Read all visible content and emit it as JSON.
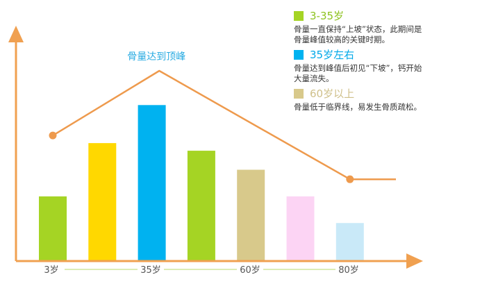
{
  "colors": {
    "axis": "#F0A050",
    "trend": "#EE9A4D",
    "peak_label": "#29ABE2",
    "tick_text": "#555555",
    "divider": "#B8D96A"
  },
  "chart_data": {
    "type": "bar",
    "xlabel": "",
    "ylabel": "",
    "ylim": [
      0,
      100
    ],
    "x_tick_labels": [
      "3岁",
      "35岁",
      "60岁",
      "80岁"
    ],
    "bars": [
      {
        "value": 34,
        "color": "#A5D424"
      },
      {
        "value": 62,
        "color": "#FFD800"
      },
      {
        "value": 82,
        "color": "#00B2F0"
      },
      {
        "value": 58,
        "color": "#A5D424"
      },
      {
        "value": 48,
        "color": "#D8C98B"
      },
      {
        "value": 34,
        "color": "#FCD4F4"
      },
      {
        "value": 20,
        "color": "#C9E9F8"
      }
    ],
    "trend_line": {
      "x": [
        1,
        3.15,
        7
      ],
      "y": [
        66,
        100,
        43
      ],
      "tail_y": 43,
      "peak_label": "骨量达到顶峰"
    }
  },
  "legend": [
    {
      "title": "3-35岁",
      "title_color": "#8DC21F",
      "swatch": "#A5D424",
      "desc": [
        "骨量一直保持“上坡”状态，此期间是",
        "骨量峰值较高的关键时期。"
      ]
    },
    {
      "title": "35岁左右",
      "title_color": "#00A8E8",
      "swatch": "#00B2F0",
      "desc": [
        "骨量达到峰值后初见“下坡”，钙开始",
        "大量流失。"
      ]
    },
    {
      "title": "60岁以上",
      "title_color": "#CFC08A",
      "swatch": "#D8C98B",
      "desc": [
        "骨量低于临界线，易发生骨质疏松。"
      ]
    }
  ]
}
